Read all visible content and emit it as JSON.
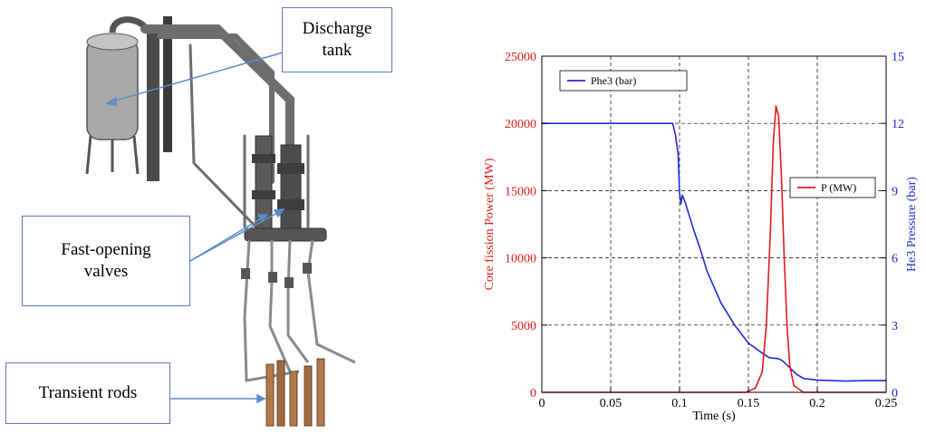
{
  "diagram": {
    "callouts": {
      "discharge_tank": [
        "Discharge",
        "tank"
      ],
      "fast_opening_valves": [
        "Fast-opening",
        "valves"
      ],
      "transient_rods": "Transient rods"
    }
  },
  "colors": {
    "power": "#e01b1b",
    "pressure": "#1f2bd6",
    "callout_border": "#5b7db6",
    "arrow": "#5b8cc8",
    "metal": "#9a9a9a",
    "copper": "#b07a4a"
  },
  "chart_data": {
    "type": "line",
    "title": "",
    "xlabel": "Time (s)",
    "ylabel": "Core fission Power (MW)",
    "y2label": "He3 Pressure (bar)",
    "xlim": [
      0,
      0.25
    ],
    "ylim": [
      0,
      25000
    ],
    "y2lim": [
      0,
      15
    ],
    "x_ticks": [
      "0",
      "0.05",
      "0.1",
      "0.15",
      "0.2",
      "0.25"
    ],
    "y_ticks": [
      "0",
      "5000",
      "10000",
      "15000",
      "20000",
      "25000"
    ],
    "y2_ticks": [
      "0",
      "3",
      "6",
      "9",
      "12",
      "15"
    ],
    "grid": true,
    "series": [
      {
        "name": "Phe3 (bar)",
        "axis": "right",
        "x": [
          0,
          0.05,
          0.09,
          0.095,
          0.097,
          0.099,
          0.1,
          0.101,
          0.102,
          0.104,
          0.106,
          0.11,
          0.115,
          0.12,
          0.13,
          0.14,
          0.15,
          0.16,
          0.165,
          0.172,
          0.175,
          0.18,
          0.185,
          0.19,
          0.2,
          0.21,
          0.22,
          0.235,
          0.25
        ],
        "values": [
          12,
          12,
          12,
          12,
          11.5,
          10.6,
          8.9,
          8.4,
          8.8,
          8.5,
          8.1,
          7.3,
          6.4,
          5.4,
          4.0,
          3.0,
          2.2,
          1.75,
          1.55,
          1.5,
          1.4,
          1.1,
          0.8,
          0.62,
          0.55,
          0.52,
          0.5,
          0.52,
          0.52
        ]
      },
      {
        "name": "P (MW)",
        "axis": "left",
        "x": [
          0,
          0.1,
          0.148,
          0.155,
          0.16,
          0.163,
          0.166,
          0.168,
          0.17,
          0.172,
          0.174,
          0.176,
          0.178,
          0.18,
          0.183,
          0.19,
          0.25
        ],
        "values": [
          0,
          0,
          0,
          300,
          1500,
          5000,
          12000,
          18500,
          21300,
          20500,
          16000,
          10000,
          5000,
          2000,
          500,
          0,
          0
        ]
      }
    ],
    "legend": [
      {
        "label": "Phe3 (bar)",
        "position": "top-left"
      },
      {
        "label": "P (MW)",
        "position": "right"
      }
    ]
  }
}
